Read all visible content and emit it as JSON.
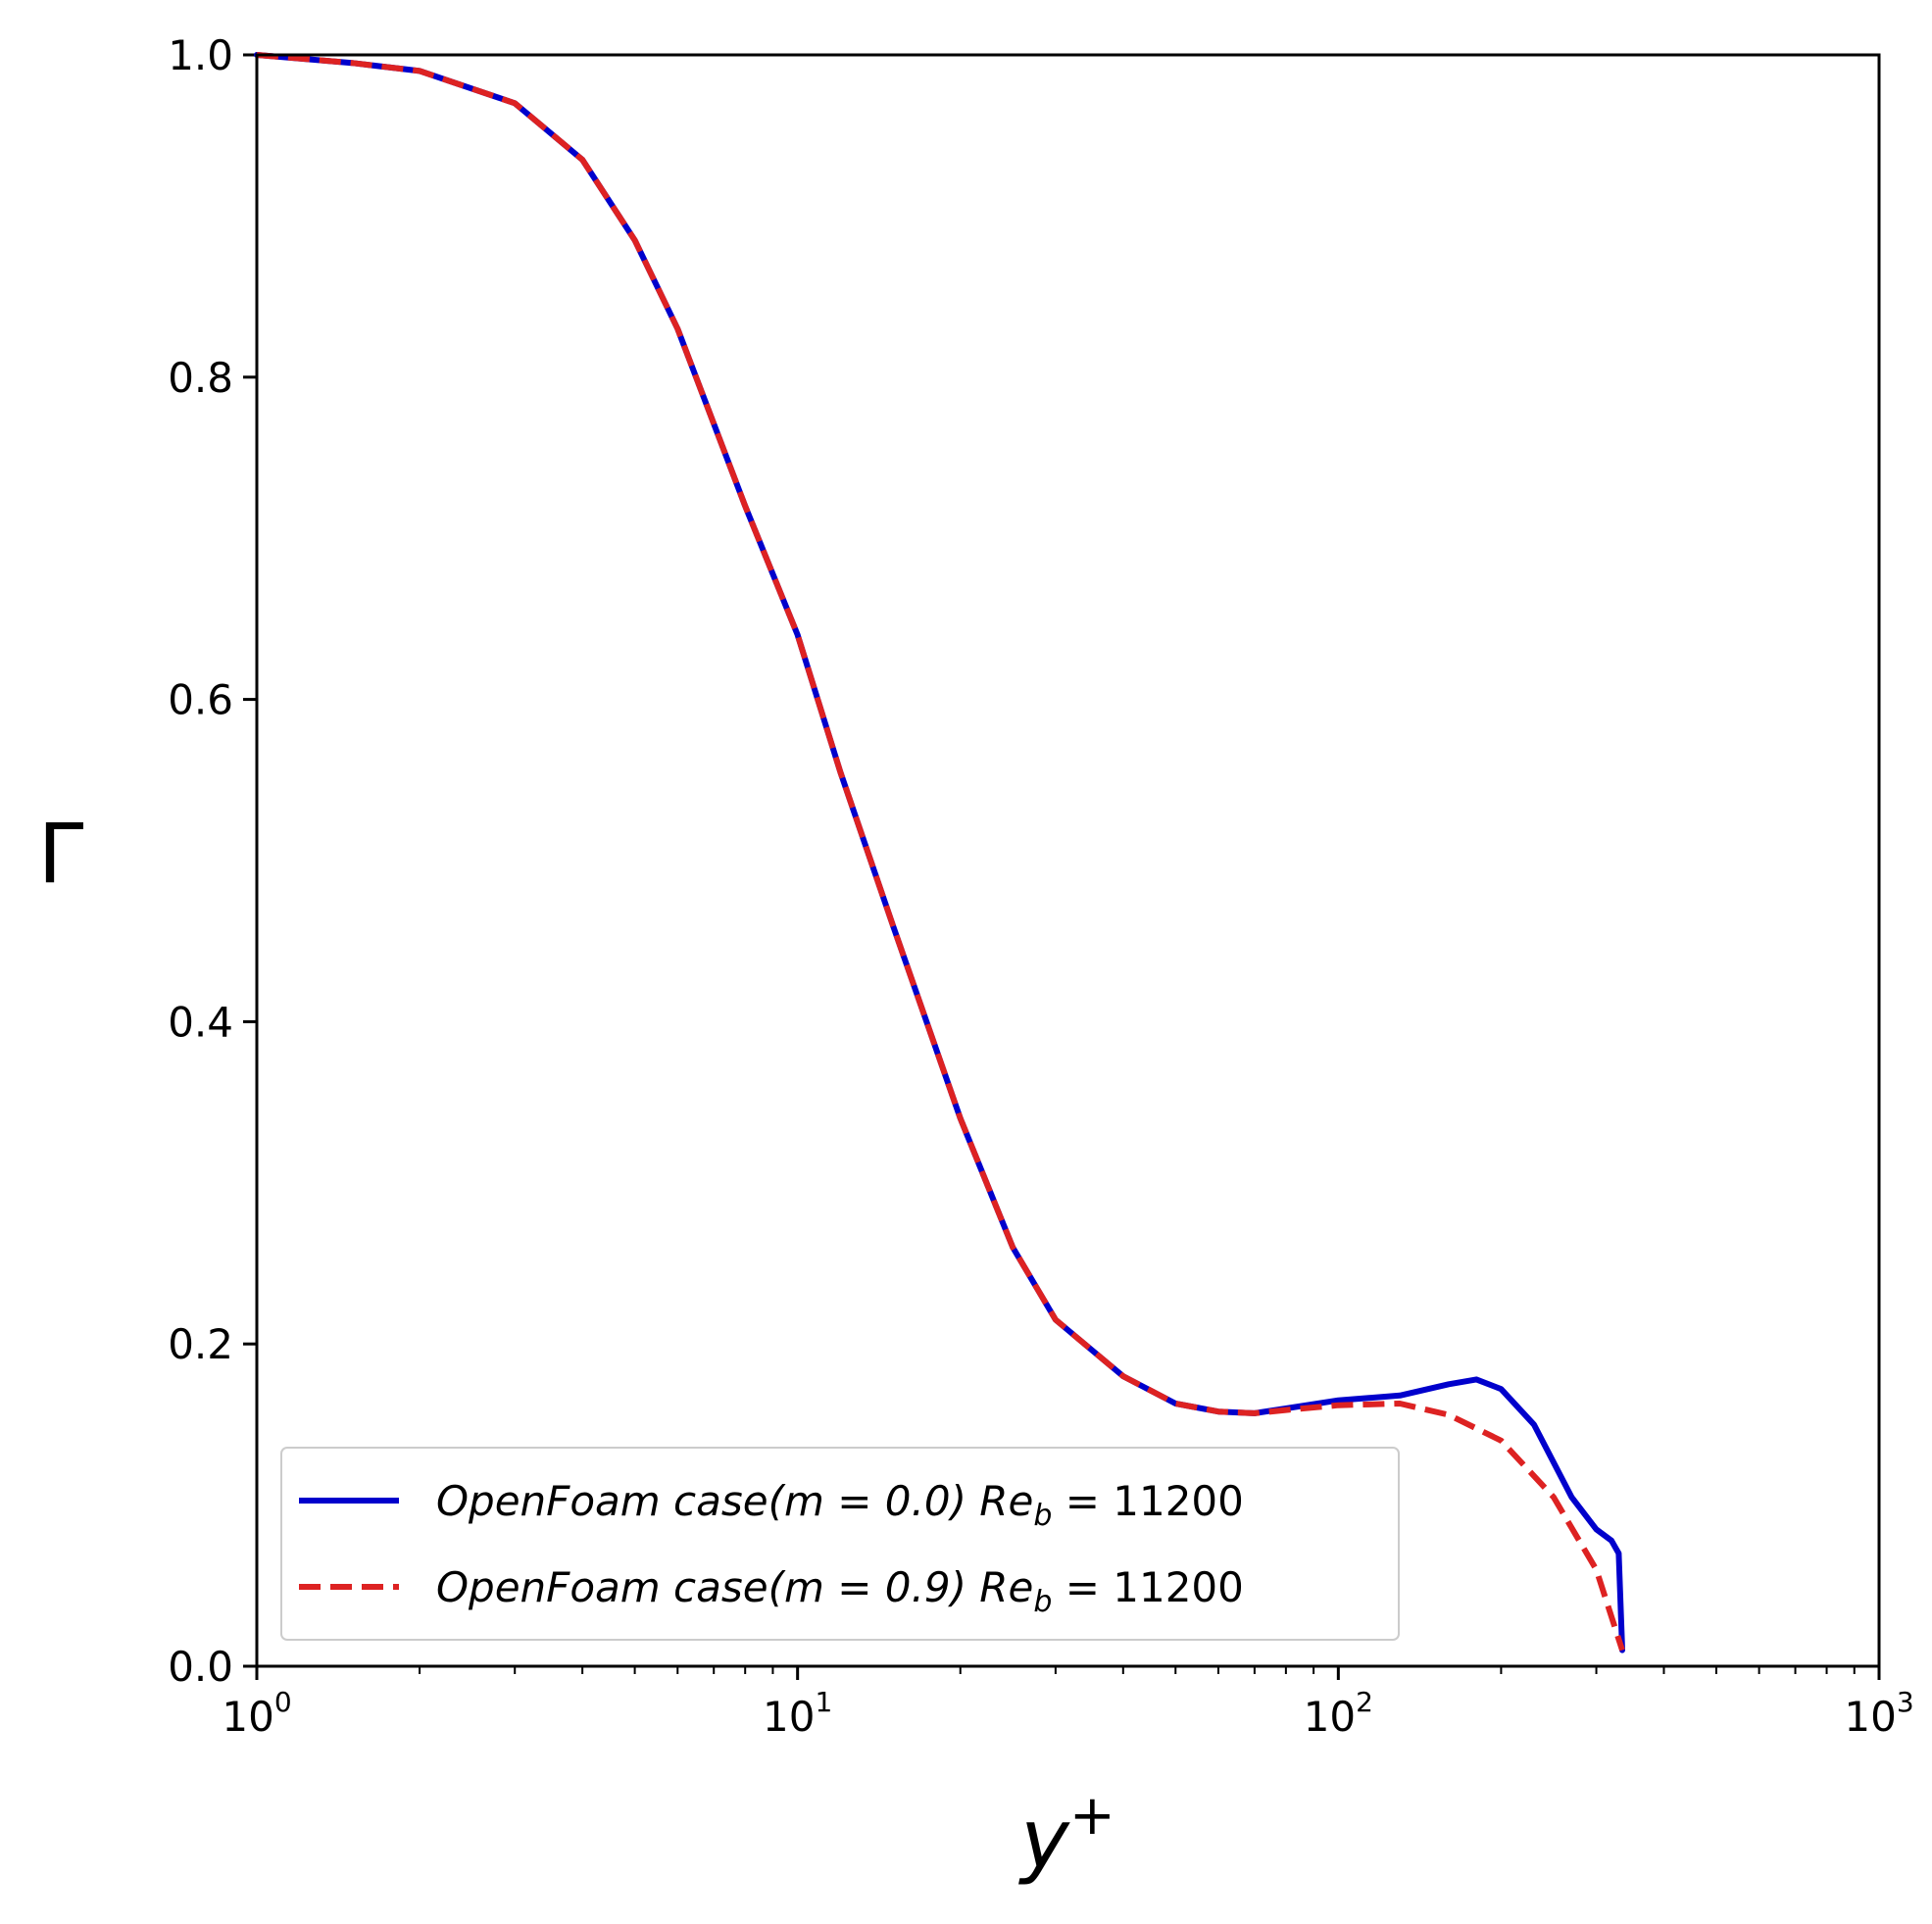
{
  "chart_data": {
    "type": "line",
    "xlabel": "y",
    "xlabel_sup": "+",
    "ylabel": "Γ",
    "xscale": "log",
    "xlim": [
      1,
      1000
    ],
    "ylim": [
      0.0,
      1.0
    ],
    "grid": false,
    "legend_position": "lower-left",
    "x_ticks": [
      {
        "base": "10",
        "exp": "0",
        "value": 1
      },
      {
        "base": "10",
        "exp": "1",
        "value": 10
      },
      {
        "base": "10",
        "exp": "2",
        "value": 100
      },
      {
        "base": "10",
        "exp": "3",
        "value": 1000
      }
    ],
    "y_ticks": [
      "0.0",
      "0.2",
      "0.4",
      "0.6",
      "0.8",
      "1.0"
    ],
    "y_tick_values": [
      0.0,
      0.2,
      0.4,
      0.6,
      0.8,
      1.0
    ],
    "series": [
      {
        "name": "OpenFoam case(m = 0.0)  Re_b = 11200",
        "legend_main": "OpenFoam case(m = 0.0) Re",
        "legend_sub": "b",
        "legend_tail": " = 11200",
        "color": "#0000cc",
        "style": "solid",
        "x": [
          1,
          1.5,
          2,
          3,
          4,
          5,
          6,
          8,
          10,
          12,
          15,
          20,
          25,
          30,
          40,
          50,
          60,
          70,
          80,
          100,
          130,
          160,
          180,
          200,
          230,
          270,
          300,
          320,
          330,
          335
        ],
        "y": [
          1.0,
          0.995,
          0.99,
          0.97,
          0.935,
          0.885,
          0.83,
          0.72,
          0.64,
          0.555,
          0.46,
          0.34,
          0.26,
          0.215,
          0.18,
          0.163,
          0.158,
          0.157,
          0.16,
          0.165,
          0.168,
          0.175,
          0.178,
          0.172,
          0.15,
          0.105,
          0.085,
          0.078,
          0.07,
          0.01
        ]
      },
      {
        "name": "OpenFoam case(m = 0.9)  Re_b = 11200",
        "legend_main": "OpenFoam case(m = 0.9) Re",
        "legend_sub": "b",
        "legend_tail": " = 11200",
        "color": "#dd2222",
        "style": "dashed",
        "x": [
          1,
          1.5,
          2,
          3,
          4,
          5,
          6,
          8,
          10,
          12,
          15,
          20,
          25,
          30,
          40,
          50,
          60,
          70,
          80,
          100,
          130,
          160,
          200,
          250,
          300,
          335
        ],
        "y": [
          1.0,
          0.995,
          0.99,
          0.97,
          0.935,
          0.885,
          0.83,
          0.72,
          0.64,
          0.555,
          0.46,
          0.34,
          0.26,
          0.215,
          0.18,
          0.163,
          0.158,
          0.157,
          0.159,
          0.162,
          0.163,
          0.156,
          0.14,
          0.105,
          0.06,
          0.01
        ]
      }
    ]
  }
}
